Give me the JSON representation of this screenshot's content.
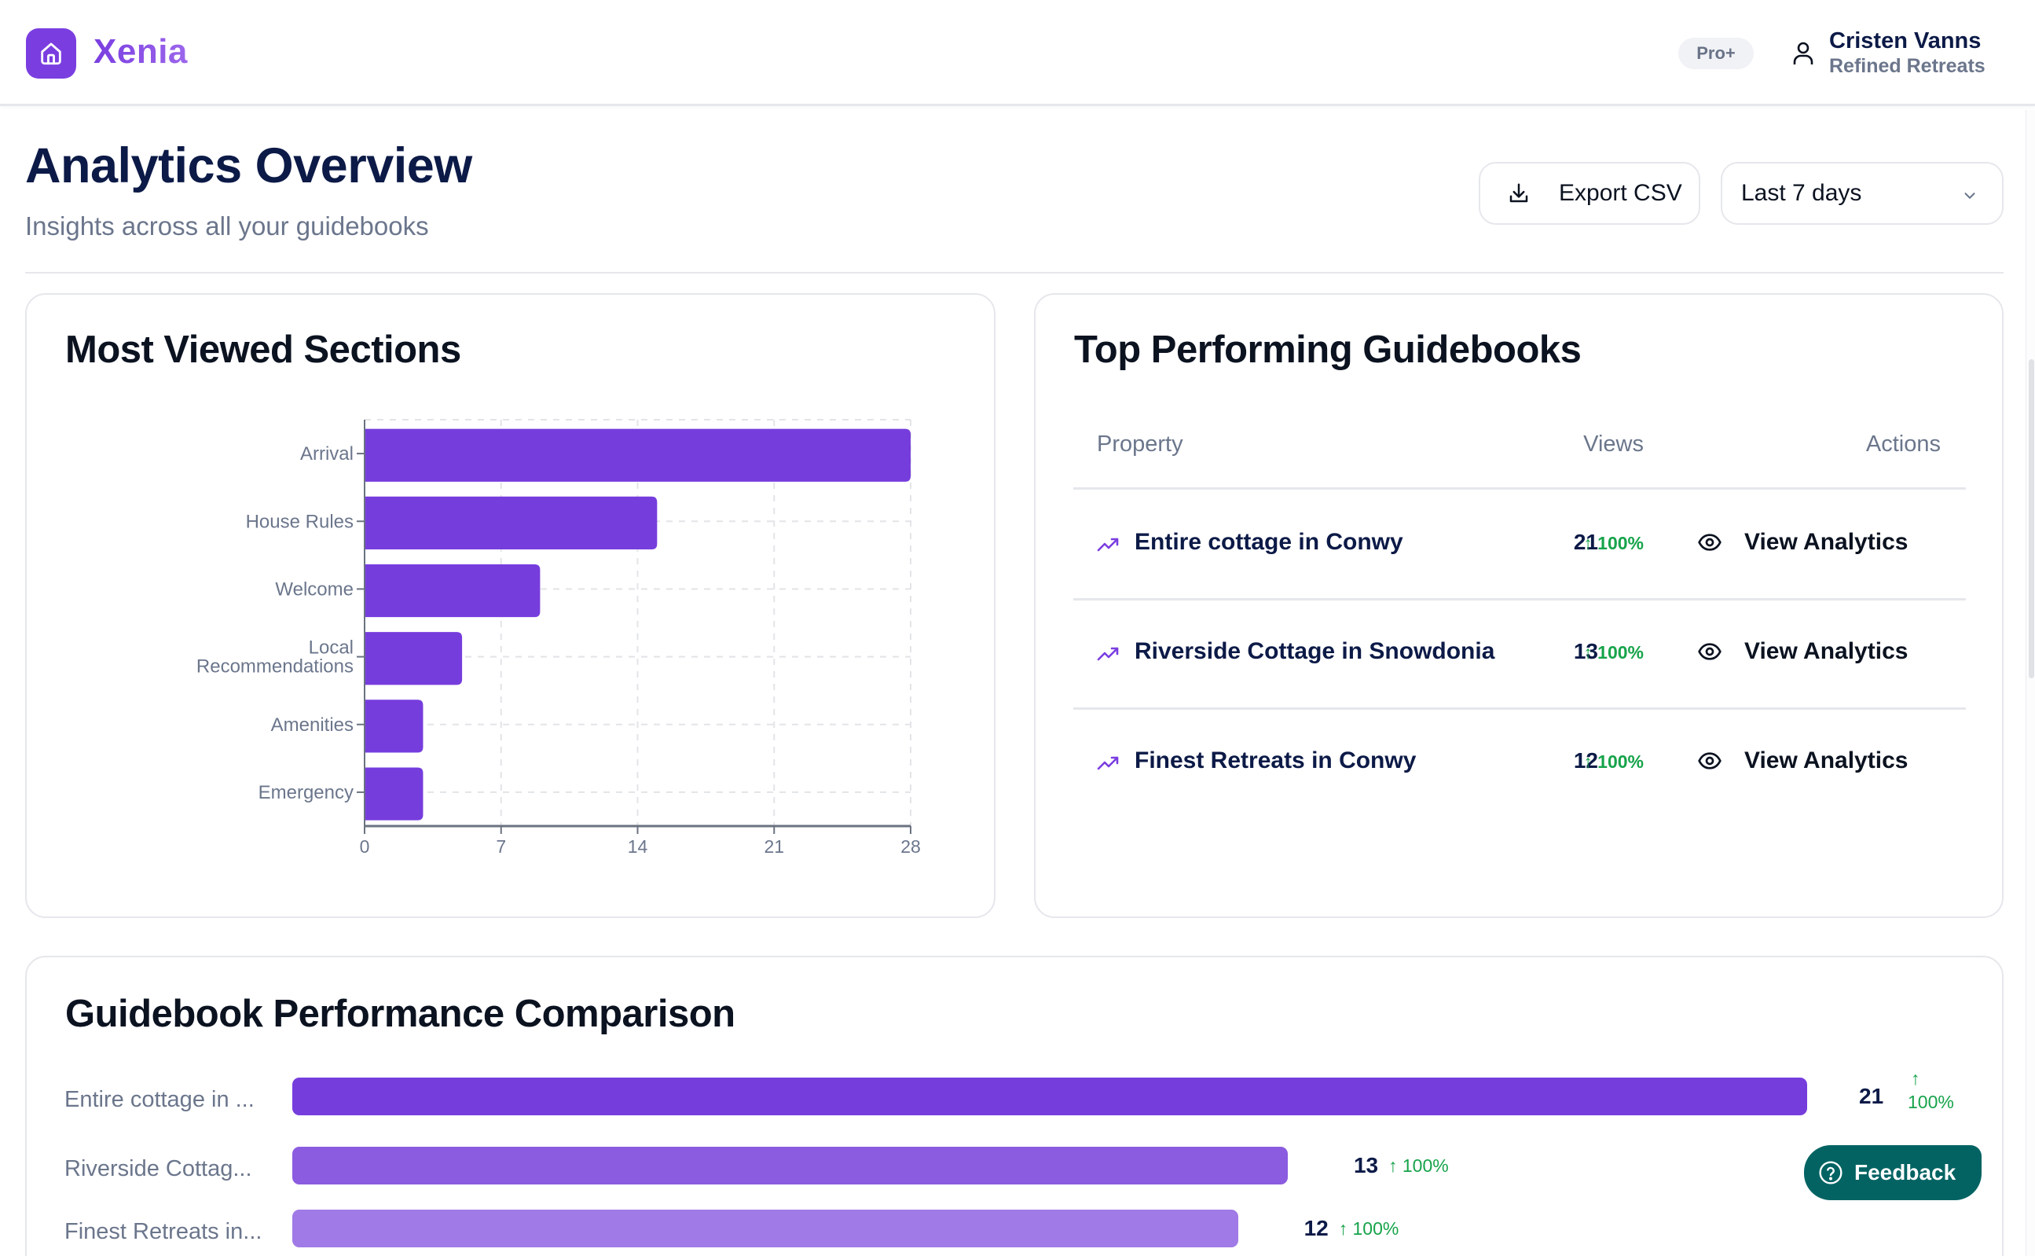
{
  "app": {
    "name": "Xenia",
    "logo_icon": "house-icon",
    "plan_badge": "Pro+",
    "user": {
      "name": "Cristen Vanns",
      "organization": "Refined Retreats",
      "icon": "user-icon"
    }
  },
  "page": {
    "title": "Analytics Overview",
    "subtitle": "Insights across all your guidebooks",
    "export_label": "Export CSV",
    "export_icon": "download-icon",
    "range_selected": "Last 7 days",
    "range_icon": "chevron-down-icon"
  },
  "most_viewed": {
    "title": "Most Viewed Sections"
  },
  "top_guidebooks": {
    "title": "Top Performing Guidebooks",
    "columns": [
      "Property",
      "Views",
      "Actions"
    ],
    "rows": [
      {
        "name": "Entire cottage in Conwy",
        "views": "21",
        "change": "↑ 100%",
        "action": "View Analytics"
      },
      {
        "name": "Riverside Cottage in Snowdonia",
        "views": "13",
        "change": "↑ 100%",
        "action": "View Analytics"
      },
      {
        "name": "Finest Retreats in Conwy",
        "views": "12",
        "change": "↑ 100%",
        "action": "View Analytics"
      }
    ]
  },
  "comparison": {
    "title": "Guidebook Performance Comparison",
    "rows": [
      {
        "label": "Entire cottage in ...",
        "value": "21",
        "change_arrow": "↑",
        "change": "100%",
        "color": "#763ddd"
      },
      {
        "label": "Riverside Cottag...",
        "value": "13",
        "change_arrow": "↑",
        "change": "100%",
        "color": "#8b5ce0"
      },
      {
        "label": "Finest Retreats in...",
        "value": "12",
        "change_arrow": "↑",
        "change": "100%",
        "color": "#a07ae6"
      }
    ]
  },
  "feedback": {
    "label": "Feedback",
    "icon": "help-circle-icon"
  },
  "colors": {
    "brand": "#7a3ee0",
    "bar": "#763ddd",
    "positive": "#16a34a",
    "navy": "#0c1a47",
    "feedback": "#036363"
  },
  "chart_data": [
    {
      "type": "bar",
      "orientation": "horizontal",
      "title": "Most Viewed Sections",
      "categories": [
        "Arrival",
        "House Rules",
        "Welcome",
        "Local Recommendations",
        "Amenities",
        "Emergency"
      ],
      "values": [
        28,
        15,
        9,
        5,
        3,
        3
      ],
      "xlabel": "",
      "ylabel": "",
      "xlim": [
        0,
        28
      ],
      "xticks": [
        0,
        7,
        14,
        21,
        28
      ],
      "grid": true
    },
    {
      "type": "bar",
      "orientation": "horizontal",
      "title": "Guidebook Performance Comparison",
      "categories": [
        "Entire cottage in Conwy",
        "Riverside Cottage in Snowdonia",
        "Finest Retreats in Conwy"
      ],
      "values": [
        21,
        13,
        12
      ],
      "change_percent": [
        100,
        100,
        100
      ],
      "grid": false
    }
  ]
}
